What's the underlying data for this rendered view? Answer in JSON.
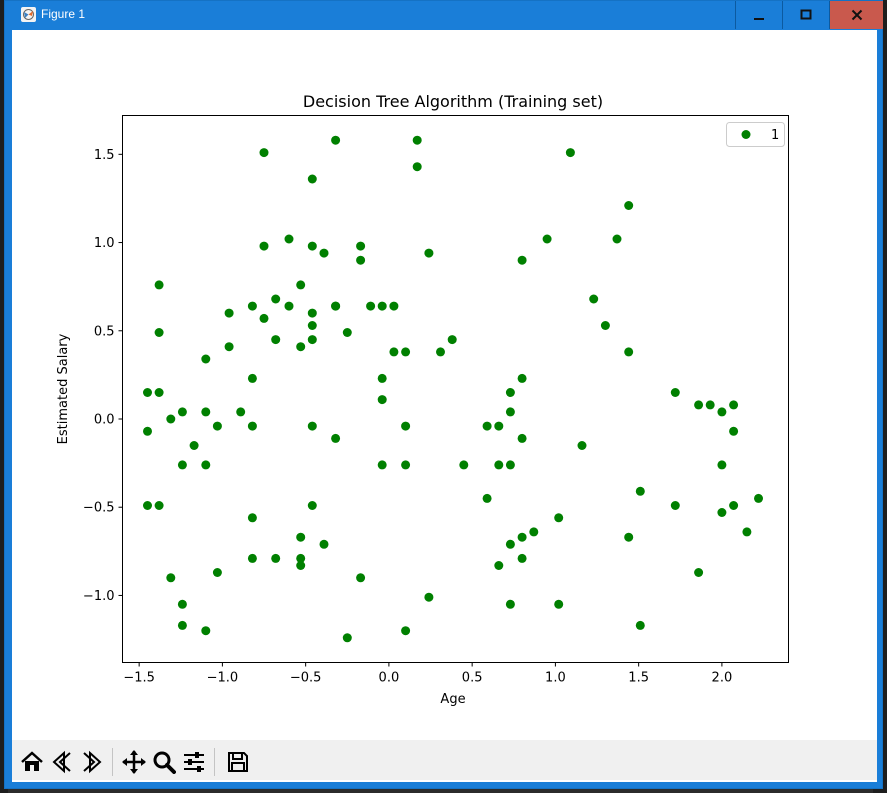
{
  "window": {
    "title": "Figure 1",
    "minimize_label": "▁",
    "maximize_label": "□",
    "close_label": "X"
  },
  "toolbar": {
    "buttons": [
      {
        "name": "home-button",
        "icon": "home-icon"
      },
      {
        "name": "back-button",
        "icon": "back-arrow-icon"
      },
      {
        "name": "forward-button",
        "icon": "forward-arrow-icon"
      },
      {
        "name": "pan-button",
        "icon": "move-icon"
      },
      {
        "name": "zoom-button",
        "icon": "zoom-icon"
      },
      {
        "name": "configure-subplots-button",
        "icon": "sliders-icon"
      },
      {
        "name": "save-button",
        "icon": "save-icon"
      }
    ]
  },
  "colors": {
    "marker": "#008000",
    "window_frame": "#1a7ed8",
    "close_button": "#c9594d"
  },
  "chart_data": {
    "type": "scatter",
    "title": "Decision Tree Algorithm (Training set)",
    "xlabel": "Age",
    "ylabel": "Estimated Salary",
    "xlim": [
      -1.6,
      2.4
    ],
    "ylim": [
      -1.38,
      1.72
    ],
    "xticks": [
      -1.5,
      -1.0,
      -0.5,
      0.0,
      0.5,
      1.0,
      1.5,
      2.0
    ],
    "xtick_labels": [
      "−1.5",
      "−1.0",
      "−0.5",
      "0.0",
      "0.5",
      "1.0",
      "1.5",
      "2.0"
    ],
    "yticks": [
      -1.0,
      -0.5,
      0.0,
      0.5,
      1.0,
      1.5
    ],
    "ytick_labels": [
      "−1.0",
      "−0.5",
      "0.0",
      "0.5",
      "1.0",
      "1.5"
    ],
    "legend_position": "top-right",
    "grid": false,
    "series": [
      {
        "name": "1",
        "color": "#008000",
        "points": [
          [
            -0.75,
            1.51
          ],
          [
            -0.32,
            1.58
          ],
          [
            0.17,
            1.58
          ],
          [
            -0.46,
            1.36
          ],
          [
            0.17,
            1.43
          ],
          [
            1.09,
            1.51
          ],
          [
            1.44,
            1.21
          ],
          [
            -0.75,
            0.98
          ],
          [
            -0.6,
            1.02
          ],
          [
            -0.46,
            0.98
          ],
          [
            -0.39,
            0.94
          ],
          [
            -0.17,
            0.98
          ],
          [
            -0.17,
            0.9
          ],
          [
            0.24,
            0.94
          ],
          [
            0.8,
            0.9
          ],
          [
            0.95,
            1.02
          ],
          [
            1.37,
            1.02
          ],
          [
            -1.38,
            0.76
          ],
          [
            -0.53,
            0.76
          ],
          [
            -0.82,
            0.64
          ],
          [
            -0.68,
            0.68
          ],
          [
            -0.6,
            0.64
          ],
          [
            -0.46,
            0.6
          ],
          [
            -0.32,
            0.64
          ],
          [
            -0.32,
            0.64
          ],
          [
            -0.11,
            0.64
          ],
          [
            -0.04,
            0.64
          ],
          [
            0.03,
            0.64
          ],
          [
            1.23,
            0.68
          ],
          [
            -0.96,
            0.6
          ],
          [
            -0.75,
            0.57
          ],
          [
            -1.38,
            0.49
          ],
          [
            -0.46,
            0.53
          ],
          [
            -0.25,
            0.49
          ],
          [
            1.3,
            0.53
          ],
          [
            -0.68,
            0.45
          ],
          [
            -0.96,
            0.41
          ],
          [
            -0.53,
            0.41
          ],
          [
            -0.46,
            0.45
          ],
          [
            0.38,
            0.45
          ],
          [
            -1.1,
            0.34
          ],
          [
            0.03,
            0.38
          ],
          [
            0.1,
            0.38
          ],
          [
            0.31,
            0.38
          ],
          [
            1.44,
            0.38
          ],
          [
            -0.82,
            0.23
          ],
          [
            -0.04,
            0.23
          ],
          [
            0.8,
            0.23
          ],
          [
            -1.45,
            0.15
          ],
          [
            -1.38,
            0.15
          ],
          [
            -0.04,
            0.11
          ],
          [
            0.73,
            0.15
          ],
          [
            1.72,
            0.15
          ],
          [
            1.86,
            0.08
          ],
          [
            1.93,
            0.08
          ],
          [
            2.07,
            0.08
          ],
          [
            -1.24,
            0.04
          ],
          [
            -1.1,
            0.04
          ],
          [
            -0.89,
            0.04
          ],
          [
            -1.31,
            0.0
          ],
          [
            0.73,
            0.04
          ],
          [
            2.0,
            0.04
          ],
          [
            -1.45,
            -0.07
          ],
          [
            -1.03,
            -0.04
          ],
          [
            -0.82,
            -0.04
          ],
          [
            -0.46,
            -0.04
          ],
          [
            0.1,
            -0.04
          ],
          [
            0.59,
            -0.04
          ],
          [
            0.66,
            -0.04
          ],
          [
            2.07,
            -0.07
          ],
          [
            -1.17,
            -0.15
          ],
          [
            -0.32,
            -0.11
          ],
          [
            0.8,
            -0.11
          ],
          [
            1.16,
            -0.15
          ],
          [
            -1.24,
            -0.26
          ],
          [
            -1.1,
            -0.26
          ],
          [
            -0.04,
            -0.26
          ],
          [
            0.1,
            -0.26
          ],
          [
            0.45,
            -0.26
          ],
          [
            0.66,
            -0.26
          ],
          [
            0.73,
            -0.26
          ],
          [
            2.0,
            -0.26
          ],
          [
            0.59,
            -0.45
          ],
          [
            1.51,
            -0.41
          ],
          [
            2.22,
            -0.45
          ],
          [
            -1.45,
            -0.49
          ],
          [
            -1.38,
            -0.49
          ],
          [
            -0.46,
            -0.49
          ],
          [
            1.72,
            -0.49
          ],
          [
            2.07,
            -0.49
          ],
          [
            2.0,
            -0.53
          ],
          [
            -0.82,
            -0.56
          ],
          [
            1.02,
            -0.56
          ],
          [
            0.87,
            -0.64
          ],
          [
            2.15,
            -0.64
          ],
          [
            -0.53,
            -0.67
          ],
          [
            0.8,
            -0.67
          ],
          [
            1.44,
            -0.67
          ],
          [
            -0.39,
            -0.71
          ],
          [
            0.73,
            -0.71
          ],
          [
            -0.82,
            -0.79
          ],
          [
            -0.68,
            -0.79
          ],
          [
            -0.53,
            -0.79
          ],
          [
            -0.53,
            -0.83
          ],
          [
            0.66,
            -0.83
          ],
          [
            0.8,
            -0.79
          ],
          [
            -1.03,
            -0.87
          ],
          [
            1.86,
            -0.87
          ],
          [
            -1.31,
            -0.9
          ],
          [
            -0.17,
            -0.9
          ],
          [
            0.24,
            -1.01
          ],
          [
            -1.24,
            -1.05
          ],
          [
            0.73,
            -1.05
          ],
          [
            1.02,
            -1.05
          ],
          [
            -1.24,
            -1.17
          ],
          [
            -1.1,
            -1.2
          ],
          [
            0.1,
            -1.2
          ],
          [
            1.51,
            -1.17
          ],
          [
            -0.25,
            -1.24
          ]
        ]
      }
    ]
  }
}
